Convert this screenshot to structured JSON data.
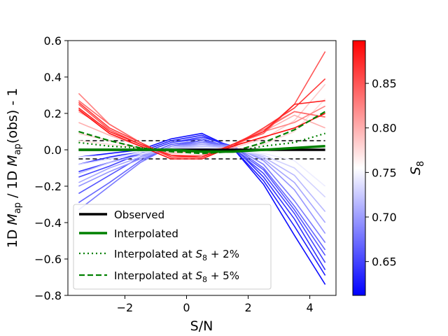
{
  "chart_data": {
    "type": "line",
    "xlabel": "S/N",
    "ylabel_parts": [
      "1D ",
      "M",
      "ap",
      " / 1D ",
      "M",
      "ap",
      "(obs) - 1"
    ],
    "xlim": [
      -3.85,
      4.85
    ],
    "ylim": [
      -0.8,
      0.6
    ],
    "xticks": [
      -2,
      0,
      2,
      4
    ],
    "xtick_labels": [
      "−2",
      "0",
      "2",
      "4"
    ],
    "yticks": [
      -0.8,
      -0.6,
      -0.4,
      -0.2,
      0.0,
      0.2,
      0.4,
      0.6
    ],
    "ytick_labels": [
      "−0.8",
      "−0.6",
      "−0.4",
      "−0.2",
      "0.0",
      "0.2",
      "0.4",
      "0.6"
    ],
    "x": [
      -3.5,
      -2.5,
      -1.5,
      -0.5,
      0.5,
      1.5,
      2.5,
      3.5,
      4.5
    ],
    "colorbar": {
      "label_base": "S",
      "label_sub": "8",
      "range": [
        0.612,
        0.898
      ],
      "ticks": [
        0.65,
        0.7,
        0.75,
        0.8,
        0.85
      ],
      "tick_labels": [
        "0.65",
        "0.70",
        "0.75",
        "0.80",
        "0.85"
      ],
      "colormap": "bwr",
      "low_color": "#0000ff",
      "mid_color": "#ffffff",
      "high_color": "#ff0000"
    },
    "model_series": [
      {
        "s8": 0.62,
        "values": [
          -0.04,
          -0.02,
          0.0,
          0.06,
          0.09,
          0.01,
          -0.19,
          -0.47,
          -0.74
        ]
      },
      {
        "s8": 0.63,
        "values": [
          -0.08,
          -0.04,
          -0.01,
          0.05,
          0.08,
          0.01,
          -0.17,
          -0.42,
          -0.69
        ]
      },
      {
        "s8": 0.64,
        "values": [
          -0.12,
          -0.07,
          -0.02,
          0.04,
          0.07,
          0.02,
          -0.15,
          -0.38,
          -0.66
        ]
      },
      {
        "s8": 0.65,
        "values": [
          -0.15,
          -0.09,
          -0.02,
          0.04,
          0.06,
          0.01,
          -0.13,
          -0.35,
          -0.62
        ]
      },
      {
        "s8": 0.66,
        "values": [
          -0.24,
          -0.14,
          -0.04,
          0.03,
          0.05,
          0.01,
          -0.11,
          -0.33,
          -0.58
        ]
      },
      {
        "s8": 0.67,
        "values": [
          -0.29,
          -0.18,
          -0.06,
          0.02,
          0.05,
          0.02,
          -0.1,
          -0.31,
          -0.55
        ]
      },
      {
        "s8": 0.68,
        "values": [
          -0.33,
          -0.2,
          -0.07,
          0.02,
          0.04,
          0.02,
          -0.08,
          -0.28,
          -0.51
        ]
      },
      {
        "s8": 0.695,
        "values": [
          -0.2,
          -0.12,
          -0.05,
          0.02,
          0.03,
          0.02,
          -0.06,
          -0.22,
          -0.46
        ]
      },
      {
        "s8": 0.705,
        "values": [
          -0.18,
          -0.1,
          -0.04,
          0.01,
          0.03,
          0.01,
          -0.05,
          -0.18,
          -0.4
        ]
      },
      {
        "s8": 0.715,
        "values": [
          -0.13,
          -0.07,
          -0.03,
          0.01,
          0.02,
          0.01,
          -0.04,
          -0.14,
          -0.34
        ]
      },
      {
        "s8": 0.73,
        "values": [
          -0.08,
          -0.05,
          -0.02,
          0.01,
          0.01,
          0.0,
          -0.03,
          -0.1,
          -0.26
        ]
      },
      {
        "s8": 0.745,
        "values": [
          -0.04,
          -0.03,
          -0.01,
          0.0,
          0.0,
          0.0,
          -0.02,
          -0.06,
          -0.2
        ]
      },
      {
        "s8": 0.775,
        "values": [
          0.05,
          0.03,
          0.01,
          -0.01,
          -0.01,
          0.0,
          0.03,
          0.1,
          0.28
        ]
      },
      {
        "s8": 0.785,
        "values": [
          0.09,
          0.05,
          0.01,
          -0.01,
          -0.01,
          0.01,
          0.06,
          0.16,
          0.36
        ]
      },
      {
        "s8": 0.8,
        "values": [
          0.15,
          0.08,
          0.02,
          -0.02,
          -0.01,
          0.02,
          0.1,
          0.19,
          0.12
        ]
      },
      {
        "s8": 0.81,
        "values": [
          0.21,
          0.11,
          0.03,
          -0.03,
          -0.03,
          0.01,
          0.12,
          0.21,
          0.18
        ]
      },
      {
        "s8": 0.825,
        "values": [
          0.31,
          0.14,
          0.04,
          -0.04,
          -0.03,
          0.02,
          0.1,
          0.15,
          0.24
        ]
      },
      {
        "s8": 0.84,
        "values": [
          0.27,
          0.14,
          0.04,
          -0.04,
          -0.04,
          0.03,
          0.11,
          0.21,
          0.18
        ]
      },
      {
        "s8": 0.85,
        "values": [
          0.25,
          0.11,
          0.03,
          -0.04,
          -0.04,
          0.03,
          0.09,
          0.25,
          0.54
        ]
      },
      {
        "s8": 0.865,
        "values": [
          0.26,
          0.12,
          0.04,
          -0.04,
          -0.04,
          0.02,
          0.12,
          0.23,
          0.39
        ]
      },
      {
        "s8": 0.88,
        "values": [
          0.23,
          0.1,
          0.03,
          -0.03,
          -0.04,
          0.03,
          0.1,
          0.25,
          0.27
        ]
      },
      {
        "s8": 0.89,
        "values": [
          0.22,
          0.09,
          0.02,
          -0.05,
          -0.05,
          0.02,
          0.07,
          0.12,
          0.2
        ]
      }
    ],
    "observed": {
      "name": "Observed",
      "color": "#000000",
      "values": [
        0.0,
        0.0,
        0.0,
        0.0,
        0.0,
        0.0,
        0.0,
        0.0,
        0.0
      ]
    },
    "obs_band": {
      "upper": 0.05,
      "lower": -0.05,
      "color": "#000000"
    },
    "interpolated": {
      "name": "Interpolated",
      "color": "#008000",
      "values": [
        0.0,
        0.0,
        0.0,
        0.0,
        -0.01,
        -0.01,
        0.0,
        0.01,
        0.02
      ]
    },
    "interp_2pct": {
      "name": "Interpolated at S8 + 2%",
      "color": "#008000",
      "values": [
        0.04,
        0.02,
        0.01,
        0.0,
        -0.01,
        -0.01,
        0.02,
        0.04,
        0.09
      ]
    },
    "interp_5pct": {
      "name": "Interpolated at S8 + 5%",
      "color": "#008000",
      "values": [
        0.1,
        0.05,
        0.01,
        -0.01,
        -0.02,
        -0.01,
        0.04,
        0.11,
        0.21
      ]
    },
    "legend": {
      "location": "lower-left",
      "entries": [
        {
          "text": "Observed"
        },
        {
          "text": "Interpolated"
        },
        {
          "prefix": "Interpolated at ",
          "sym": "S",
          "sub": "8",
          "suffix": " + 2%"
        },
        {
          "prefix": "Interpolated at ",
          "sym": "S",
          "sub": "8",
          "suffix": " + 5%"
        }
      ]
    }
  }
}
